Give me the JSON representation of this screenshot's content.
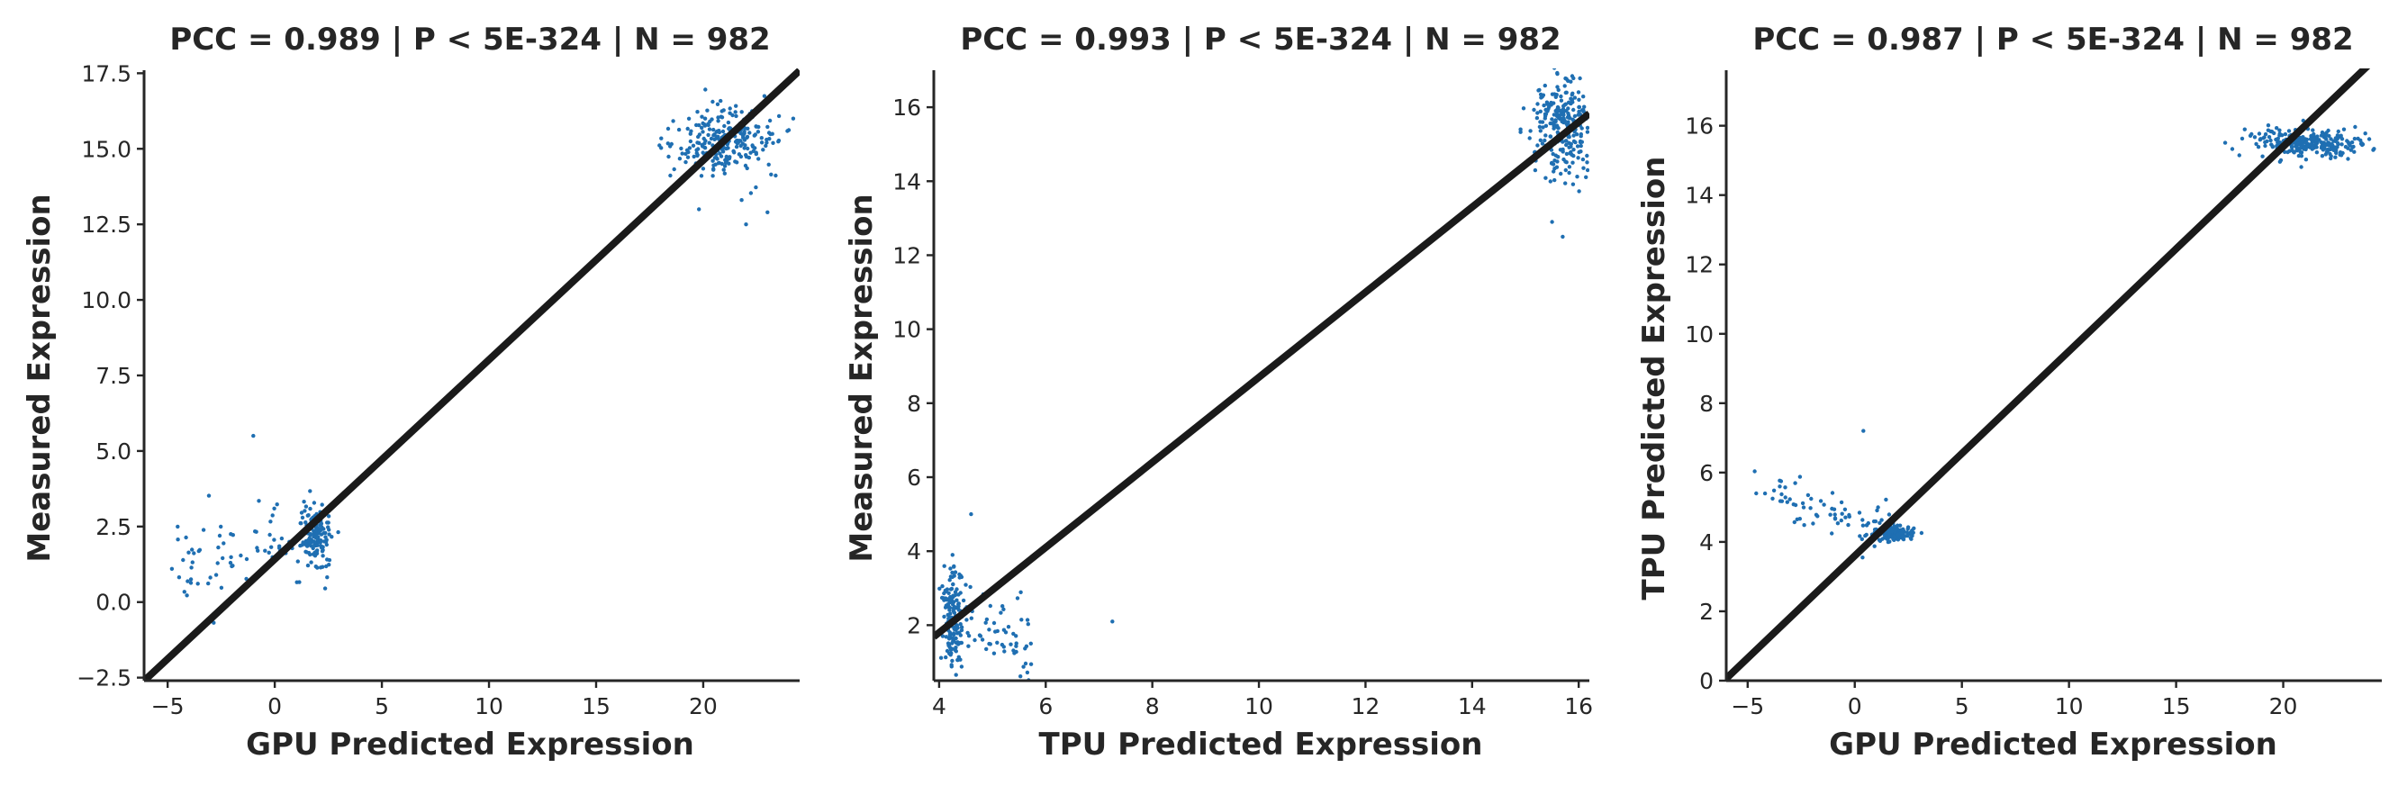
{
  "colors": {
    "points": "#1f6fb2",
    "line": "#1a1a1a",
    "axis": "#262626"
  },
  "chart_data": [
    {
      "type": "scatter",
      "title": "PCC =  0.989 | P <  5E-324 | N = 982",
      "xlabel": "GPU Predicted Expression",
      "ylabel": "Measured Expression",
      "xlim": [
        -6.1,
        24.5
      ],
      "ylim": [
        -2.6,
        17.6
      ],
      "xticks": [
        -5,
        0,
        5,
        10,
        15,
        20
      ],
      "xtick_labels": [
        "−5",
        "0",
        "5",
        "10",
        "15",
        "20"
      ],
      "yticks": [
        -2.5,
        0.0,
        2.5,
        5.0,
        7.5,
        10.0,
        12.5,
        15.0,
        17.5
      ],
      "ytick_labels": [
        "−2.5",
        "0.0",
        "2.5",
        "5.0",
        "7.5",
        "10.0",
        "12.5",
        "15.0",
        "17.5"
      ],
      "fit_line": {
        "slope": 0.66,
        "intercept": 1.42
      },
      "clusters": [
        {
          "n": 220,
          "cx": 1.9,
          "cy": 2.2,
          "sx": 0.35,
          "sy": 0.5,
          "tail": "left"
        },
        {
          "n": 260,
          "cx": 21.0,
          "cy": 15.3,
          "sx": 1.2,
          "sy": 0.6,
          "tail": "none"
        }
      ],
      "outliers": [
        [
          -1.0,
          5.5
        ],
        [
          -4.8,
          1.1
        ],
        [
          23.0,
          12.9
        ],
        [
          24.2,
          16.0
        ],
        [
          19.8,
          13.0
        ],
        [
          22.0,
          12.5
        ]
      ]
    },
    {
      "type": "scatter",
      "title": "PCC =  0.993 | P <  5E-324 | N = 982",
      "xlabel": "TPU Predicted Expression",
      "ylabel": "Measured Expression",
      "xlim": [
        3.9,
        16.2
      ],
      "ylim": [
        0.5,
        17.0
      ],
      "xticks": [
        4,
        6,
        8,
        10,
        12,
        14,
        16
      ],
      "xtick_labels": [
        "4",
        "6",
        "8",
        "10",
        "12",
        "14",
        "16"
      ],
      "yticks": [
        2,
        4,
        6,
        8,
        10,
        12,
        14,
        16
      ],
      "ytick_labels": [
        "2",
        "4",
        "6",
        "8",
        "10",
        "12",
        "14",
        "16"
      ],
      "fit_line": {
        "slope": 1.15,
        "intercept": -2.8
      },
      "clusters": [
        {
          "n": 230,
          "cx": 4.25,
          "cy": 2.2,
          "sx": 0.1,
          "sy": 0.8,
          "tail": "right"
        },
        {
          "n": 260,
          "cx": 15.7,
          "cy": 15.4,
          "sx": 0.25,
          "sy": 0.7,
          "tail": "none"
        }
      ],
      "outliers": [
        [
          7.25,
          2.1
        ],
        [
          4.6,
          5.0
        ],
        [
          15.5,
          12.9
        ],
        [
          15.7,
          12.5
        ],
        [
          15.6,
          16.9
        ]
      ]
    },
    {
      "type": "scatter",
      "title": "PCC =  0.987 | P <  5E-324 | N = 982",
      "xlabel": "GPU Predicted Expression",
      "ylabel": "TPU Predicted Expression",
      "xlim": [
        -6.0,
        24.6
      ],
      "ylim": [
        0.0,
        17.6
      ],
      "xticks": [
        -5,
        0,
        5,
        10,
        15,
        20
      ],
      "xtick_labels": [
        "−5",
        "0",
        "5",
        "10",
        "15",
        "20"
      ],
      "yticks": [
        0,
        2,
        4,
        6,
        8,
        10,
        12,
        14,
        16
      ],
      "ytick_labels": [
        "0",
        "2",
        "4",
        "6",
        "8",
        "10",
        "12",
        "14",
        "16"
      ],
      "fit_line": {
        "slope": 0.59,
        "intercept": 3.6
      },
      "clusters": [
        {
          "n": 230,
          "cx": 1.8,
          "cy": 4.25,
          "sx": 0.5,
          "sy": 0.1,
          "tail": "left"
        },
        {
          "n": 280,
          "cx": 21.0,
          "cy": 15.5,
          "sx": 1.3,
          "sy": 0.2,
          "tail": "none"
        }
      ],
      "outliers": [
        [
          0.4,
          7.2
        ],
        [
          -4.6,
          5.4
        ],
        [
          -3.5,
          5.6
        ],
        [
          24.2,
          15.3
        ]
      ]
    }
  ]
}
